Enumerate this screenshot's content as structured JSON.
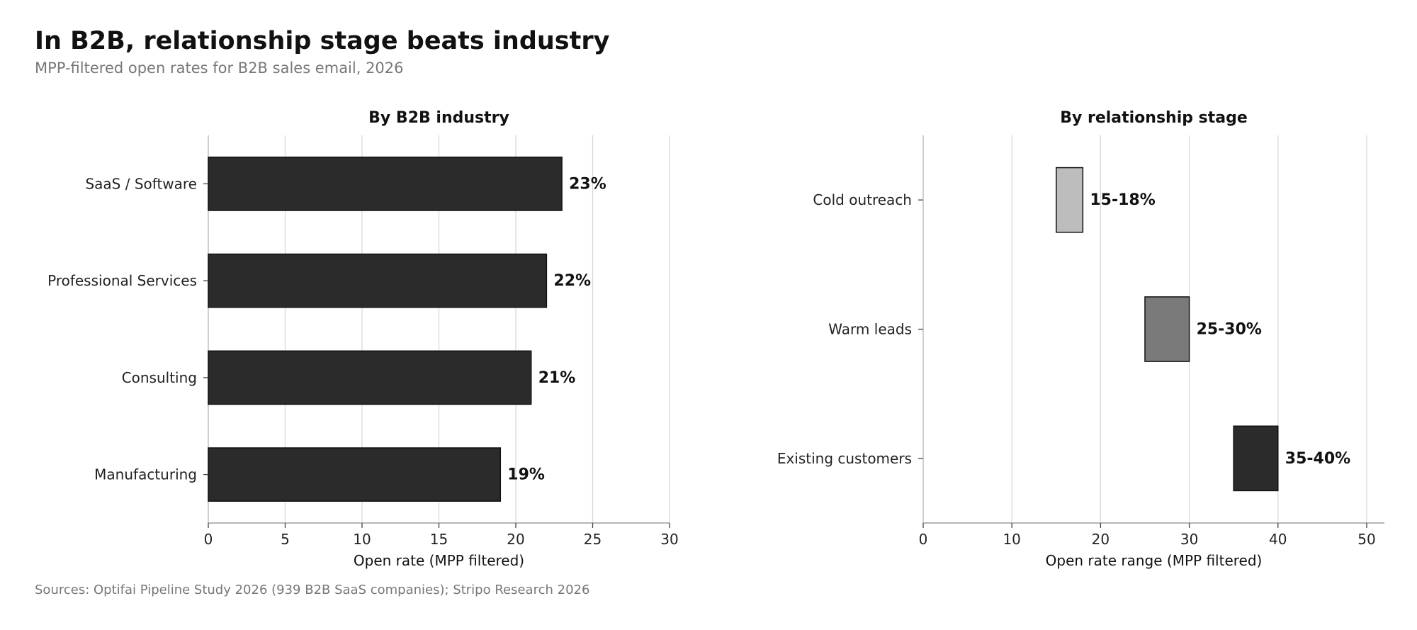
{
  "header": {
    "title": "In B2B, relationship stage beats industry",
    "subtitle": "MPP-filtered open rates for B2B sales email, 2026"
  },
  "footer": {
    "source": "Sources: Optifai Pipeline Study 2026 (939 B2B SaaS companies); Stripo Research 2026"
  },
  "chart_data": [
    {
      "type": "bar",
      "orientation": "horizontal",
      "title": "By B2B industry",
      "xlabel": "Open rate (MPP filtered)",
      "ylabel": "",
      "categories": [
        "SaaS / Software",
        "Professional Services",
        "Consulting",
        "Manufacturing"
      ],
      "values": [
        23,
        22,
        21,
        19
      ],
      "data_labels": [
        "23%",
        "22%",
        "21%",
        "19%"
      ],
      "xlim": [
        0,
        30
      ],
      "xticks": [
        0,
        5,
        10,
        15,
        20,
        25,
        30
      ],
      "grid": "vertical",
      "bar_color": "#2b2b2b"
    },
    {
      "type": "bar",
      "orientation": "horizontal-range",
      "title": "By relationship stage",
      "xlabel": "Open rate range (MPP filtered)",
      "ylabel": "",
      "categories": [
        "Cold outreach",
        "Warm leads",
        "Existing customers"
      ],
      "ranges": [
        [
          15,
          18
        ],
        [
          25,
          30
        ],
        [
          35,
          40
        ]
      ],
      "data_labels": [
        "15-18%",
        "25-30%",
        "35-40%"
      ],
      "colors": [
        "#bdbdbd",
        "#7a7a7a",
        "#2b2b2b"
      ],
      "xlim": [
        0,
        52
      ],
      "xticks": [
        0,
        10,
        20,
        30,
        40,
        50
      ],
      "grid": "vertical"
    }
  ]
}
